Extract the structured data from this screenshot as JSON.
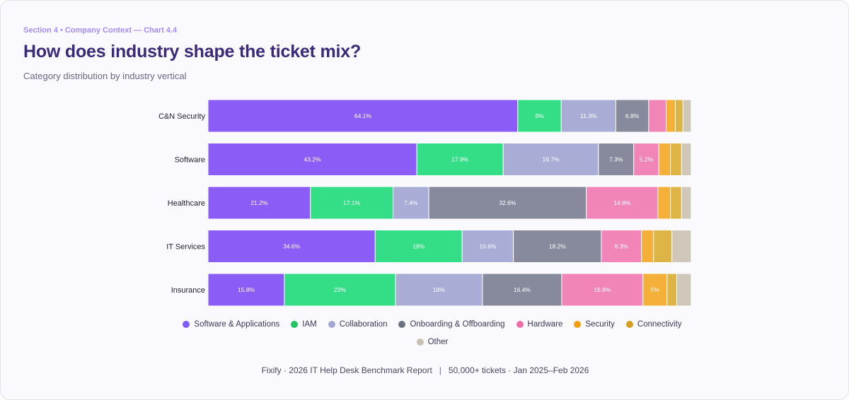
{
  "header": {
    "eyebrow": "Section 4 • Company Context — Chart 4.4",
    "title": "How does industry shape the ticket mix?",
    "subtitle": "Category distribution by industry vertical"
  },
  "footer": {
    "left": "Fixify · 2026 IT Help Desk Benchmark Report",
    "separator": "|",
    "right": "50,000+ tickets · Jan 2025–Feb 2026"
  },
  "chart_data": {
    "type": "bar",
    "orientation": "horizontal",
    "stacked": true,
    "categories": [
      "C&N Security",
      "Software",
      "Healthcare",
      "IT Services",
      "Insurance"
    ],
    "xlim": [
      0,
      100
    ],
    "grid": false,
    "legend_position": "bottom",
    "series": [
      {
        "name": "Software & Applications",
        "color": "#7c5cfa",
        "barColor": "#8b5cf6",
        "values": [
          64.1,
          43.2,
          21.2,
          34.6,
          15.8
        ],
        "labels": [
          "64.1%",
          "43.2%",
          "21.2%",
          "34.6%",
          "15.8%"
        ]
      },
      {
        "name": "IAM",
        "color": "#22c55e",
        "barColor": "#34de86",
        "values": [
          9,
          17.9,
          17.1,
          18,
          23
        ],
        "labels": [
          "9%",
          "17.9%",
          "17.1%",
          "18%",
          "23%"
        ]
      },
      {
        "name": "Collaboration",
        "color": "#a3a7d4",
        "barColor": "#a9add6",
        "values": [
          11.3,
          19.7,
          7.4,
          10.6,
          18
        ],
        "labels": [
          "11.3%",
          "19.7%",
          "7.4%",
          "10.6%",
          "18%"
        ]
      },
      {
        "name": "Onboarding & Offboarding",
        "color": "#6b7280",
        "barColor": "#878a9c",
        "values": [
          6.8,
          7.3,
          32.6,
          18.2,
          16.4
        ],
        "labels": [
          "6.8%",
          "7.3%",
          "32.6%",
          "18.2%",
          "16.4%"
        ]
      },
      {
        "name": "Hardware",
        "color": "#ec6fa8",
        "barColor": "#f285b8",
        "values": [
          3.6,
          5.2,
          14.8,
          8.3,
          16.8
        ],
        "labels": [
          "",
          "5.2%",
          "14.8%",
          "8.3%",
          "16.8%"
        ]
      },
      {
        "name": "Security",
        "color": "#f59e0b",
        "barColor": "#f5b03a",
        "values": [
          1.9,
          2.4,
          2.6,
          2.5,
          5
        ],
        "labels": [
          "",
          "",
          "",
          "",
          "5%"
        ]
      },
      {
        "name": "Connectivity",
        "color": "#d4a020",
        "barColor": "#ddb446",
        "values": [
          1.6,
          2.3,
          2.3,
          3.8,
          2
        ],
        "labels": [
          "",
          "",
          "",
          "",
          ""
        ]
      },
      {
        "name": "Other",
        "color": "#c9c2b2",
        "barColor": "#cfc8ba",
        "values": [
          1.7,
          2.0,
          2.0,
          4.0,
          3.0
        ],
        "labels": [
          "",
          "",
          "",
          "",
          ""
        ]
      }
    ]
  }
}
